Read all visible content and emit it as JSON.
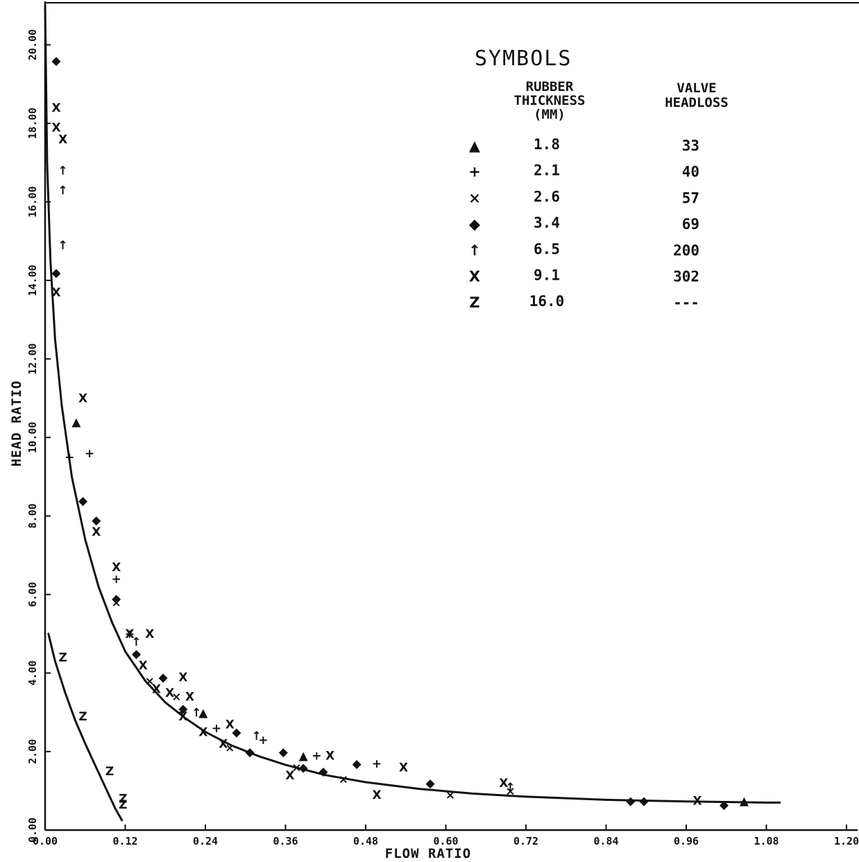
{
  "chart_data": {
    "type": "scatter",
    "xlabel": "FLOW RATIO",
    "ylabel": "HEAD RATIO",
    "xlim": [
      0,
      1.2
    ],
    "ylim": [
      0,
      21
    ],
    "xticks": [
      "0.00",
      "0.12",
      "0.24",
      "0.36",
      "0.48",
      "0.60",
      "0.72",
      "0.84",
      "0.96",
      "1.08",
      "1.20"
    ],
    "yticks": [
      "0.00",
      "2.00",
      "4.00",
      "6.00",
      "8.00",
      "10.00",
      "12.00",
      "14.00",
      "16.00",
      "18.00",
      "20.00"
    ],
    "grid": false,
    "legend": {
      "title": "SYMBOLS",
      "col1_header": [
        "RUBBER",
        "THICKNESS",
        "(MM)"
      ],
      "col2_header": [
        "VALVE",
        "HEADLOSS"
      ],
      "placement": "top-right",
      "rows": [
        {
          "symbol": "▲",
          "thickness": "1.8",
          "headloss": "33"
        },
        {
          "symbol": "+",
          "thickness": "2.1",
          "headloss": "40"
        },
        {
          "symbol": "×",
          "thickness": "2.6",
          "headloss": "57"
        },
        {
          "symbol": "◆",
          "thickness": "3.4",
          "headloss": "69"
        },
        {
          "symbol": "↑",
          "thickness": "6.5",
          "headloss": "200"
        },
        {
          "symbol": "X",
          "thickness": "9.1",
          "headloss": "302"
        },
        {
          "symbol": "Z",
          "thickness": "16.0",
          "headloss": "---"
        }
      ]
    },
    "series": [
      {
        "symbol": "▲",
        "points": [
          [
            0.03,
            10.4
          ],
          [
            0.22,
            3.0
          ],
          [
            0.37,
            1.9
          ],
          [
            1.03,
            0.75
          ]
        ]
      },
      {
        "symbol": "+",
        "points": [
          [
            0.02,
            9.5
          ],
          [
            0.05,
            9.6
          ],
          [
            0.09,
            6.4
          ],
          [
            0.11,
            5.0
          ],
          [
            0.24,
            2.6
          ],
          [
            0.31,
            2.3
          ],
          [
            0.39,
            1.9
          ],
          [
            0.48,
            1.7
          ]
        ]
      },
      {
        "symbol": "×",
        "points": [
          [
            0.09,
            5.8
          ],
          [
            0.14,
            3.8
          ],
          [
            0.18,
            3.4
          ],
          [
            0.26,
            2.1
          ],
          [
            0.36,
            1.6
          ],
          [
            0.43,
            1.3
          ],
          [
            0.59,
            0.9
          ],
          [
            0.68,
            1.0
          ]
        ]
      },
      {
        "symbol": "◆",
        "points": [
          [
            0.0,
            19.6
          ],
          [
            0.0,
            14.2
          ],
          [
            0.04,
            8.4
          ],
          [
            0.06,
            7.9
          ],
          [
            0.09,
            5.9
          ],
          [
            0.12,
            4.5
          ],
          [
            0.16,
            3.9
          ],
          [
            0.19,
            3.1
          ],
          [
            0.27,
            2.5
          ],
          [
            0.29,
            2.0
          ],
          [
            0.34,
            2.0
          ],
          [
            0.37,
            1.6
          ],
          [
            0.4,
            1.5
          ],
          [
            0.45,
            1.7
          ],
          [
            0.56,
            1.2
          ],
          [
            0.86,
            0.75
          ],
          [
            0.88,
            0.75
          ],
          [
            1.0,
            0.65
          ]
        ]
      },
      {
        "symbol": "↑",
        "points": [
          [
            0.01,
            16.8
          ],
          [
            0.01,
            14.9
          ],
          [
            0.01,
            16.3
          ],
          [
            0.12,
            4.8
          ],
          [
            0.21,
            3.0
          ],
          [
            0.3,
            2.4
          ],
          [
            0.68,
            1.1
          ]
        ]
      },
      {
        "symbol": "X",
        "points": [
          [
            0.0,
            18.4
          ],
          [
            0.0,
            17.9
          ],
          [
            0.01,
            17.6
          ],
          [
            0.0,
            13.7
          ],
          [
            0.04,
            11.0
          ],
          [
            0.06,
            7.6
          ],
          [
            0.09,
            6.7
          ],
          [
            0.11,
            5.0
          ],
          [
            0.13,
            4.2
          ],
          [
            0.15,
            3.6
          ],
          [
            0.17,
            3.5
          ],
          [
            0.19,
            2.9
          ],
          [
            0.19,
            3.9
          ],
          [
            0.2,
            3.4
          ],
          [
            0.22,
            2.5
          ],
          [
            0.25,
            2.2
          ],
          [
            0.26,
            2.7
          ],
          [
            0.35,
            1.4
          ],
          [
            0.41,
            1.9
          ],
          [
            0.48,
            0.9
          ],
          [
            0.52,
            1.6
          ],
          [
            0.67,
            1.2
          ],
          [
            0.96,
            0.75
          ],
          [
            0.14,
            5.0
          ]
        ]
      },
      {
        "symbol": "Z",
        "points": [
          [
            0.01,
            4.4
          ],
          [
            0.04,
            2.9
          ],
          [
            0.08,
            1.5
          ],
          [
            0.1,
            0.65
          ],
          [
            0.1,
            0.8
          ]
        ]
      }
    ],
    "curves": [
      {
        "points": [
          [
            0.0,
            21.0
          ],
          [
            0.003,
            17.0
          ],
          [
            0.008,
            14.5
          ],
          [
            0.015,
            12.5
          ],
          [
            0.025,
            10.8
          ],
          [
            0.04,
            9.0
          ],
          [
            0.06,
            7.4
          ],
          [
            0.08,
            6.2
          ],
          [
            0.1,
            5.3
          ],
          [
            0.12,
            4.55
          ],
          [
            0.15,
            3.8
          ],
          [
            0.18,
            3.25
          ],
          [
            0.21,
            2.85
          ],
          [
            0.24,
            2.5
          ],
          [
            0.28,
            2.15
          ],
          [
            0.32,
            1.88
          ],
          [
            0.36,
            1.66
          ],
          [
            0.42,
            1.4
          ],
          [
            0.48,
            1.22
          ],
          [
            0.56,
            1.05
          ],
          [
            0.64,
            0.93
          ],
          [
            0.72,
            0.85
          ],
          [
            0.84,
            0.77
          ],
          [
            0.96,
            0.73
          ],
          [
            1.08,
            0.7
          ],
          [
            1.1,
            0.7
          ]
        ]
      },
      {
        "points": [
          [
            0.005,
            5.0
          ],
          [
            0.015,
            4.3
          ],
          [
            0.03,
            3.5
          ],
          [
            0.045,
            2.8
          ],
          [
            0.06,
            2.2
          ],
          [
            0.075,
            1.65
          ],
          [
            0.09,
            1.1
          ],
          [
            0.105,
            0.55
          ],
          [
            0.115,
            0.25
          ]
        ]
      }
    ]
  }
}
